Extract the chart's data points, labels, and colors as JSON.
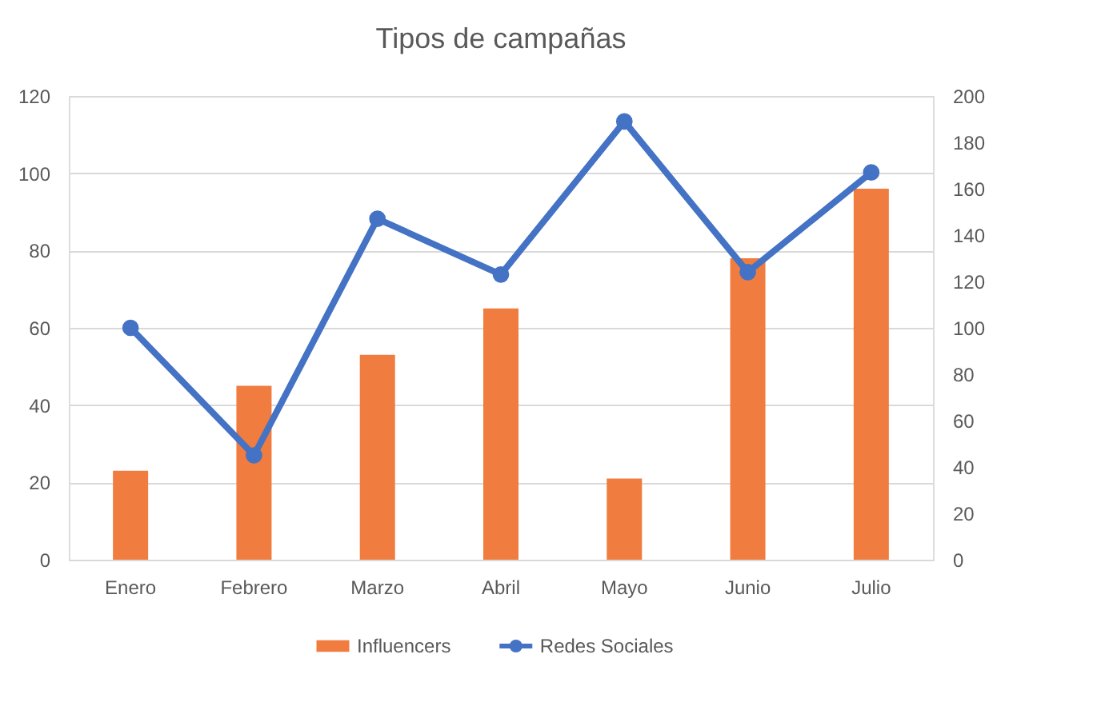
{
  "chart_data": {
    "type": "bar",
    "title": "Tipos de campañas",
    "categories": [
      "Enero",
      "Febrero",
      "Marzo",
      "Abril",
      "Mayo",
      "Junio",
      "Julio"
    ],
    "series": [
      {
        "name": "Influencers",
        "color": "#f07c3f",
        "values": [
          23,
          45,
          53,
          65,
          21,
          78,
          96
        ]
      },
      {
        "name": "Redes Sociales",
        "type": "line",
        "axis": "y2",
        "color": "#4472c4",
        "values": [
          100,
          45,
          147,
          123,
          189,
          124,
          167
        ]
      }
    ],
    "ylim": [
      0,
      120
    ],
    "yticks": [
      0,
      20,
      40,
      60,
      80,
      100,
      120
    ],
    "y2lim": [
      0,
      200
    ],
    "y2ticks": [
      0,
      20,
      40,
      60,
      80,
      100,
      120,
      140,
      160,
      180,
      200
    ],
    "grid": "y",
    "legend": "bottom",
    "marker": "circle"
  }
}
